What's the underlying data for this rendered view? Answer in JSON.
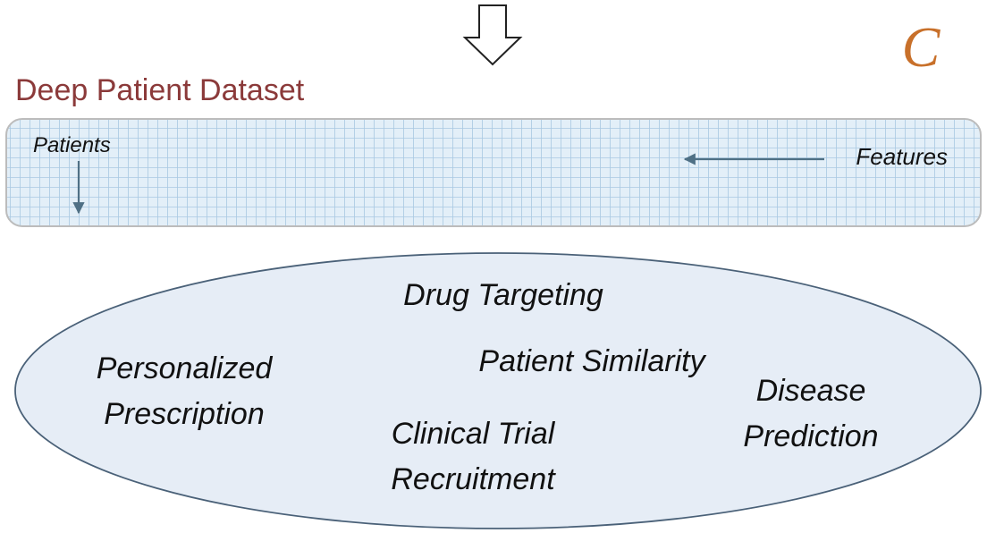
{
  "panel_letter": "C",
  "dataset": {
    "title": "Deep Patient Dataset",
    "rows_label": "Patients",
    "columns_label": "Features"
  },
  "applications": {
    "drug_targeting": [
      "Drug Targeting"
    ],
    "patient_similarity": [
      "Patient Similarity"
    ],
    "personalized_prescription": [
      "Personalized",
      "Prescription"
    ],
    "clinical_trial_recruitment": [
      "Clinical Trial",
      "Recruitment"
    ],
    "disease_prediction": [
      "Disease",
      "Prediction"
    ]
  },
  "colors": {
    "title": "#8b3a3a",
    "panel_letter": "#c8702a",
    "grid_fill": "#e3eff8",
    "grid_line": "#a9c9e2",
    "arrow": "#4f7085",
    "ellipse_fill": "#e6edf6",
    "ellipse_stroke": "#4a6178",
    "text": "#111111"
  }
}
